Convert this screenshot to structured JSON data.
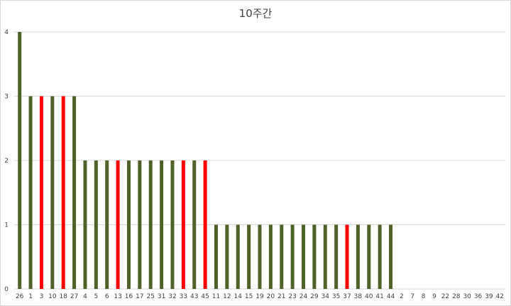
{
  "chart_data": {
    "type": "bar",
    "title": "10주간",
    "xlabel": "",
    "ylabel": "",
    "ylim": [
      0,
      4
    ],
    "yticks": [
      0,
      1,
      2,
      3,
      4
    ],
    "grid": true,
    "legend": "none",
    "categories": [
      "26",
      "1",
      "3",
      "10",
      "18",
      "27",
      "4",
      "5",
      "6",
      "13",
      "16",
      "17",
      "25",
      "31",
      "32",
      "33",
      "43",
      "45",
      "11",
      "12",
      "14",
      "15",
      "19",
      "20",
      "21",
      "23",
      "24",
      "29",
      "34",
      "35",
      "37",
      "38",
      "40",
      "41",
      "44",
      "2",
      "7",
      "8",
      "9",
      "22",
      "28",
      "30",
      "36",
      "39",
      "42"
    ],
    "values": [
      4,
      3,
      3,
      3,
      3,
      3,
      2,
      2,
      2,
      2,
      2,
      2,
      2,
      2,
      2,
      2,
      2,
      2,
      1,
      1,
      1,
      1,
      1,
      1,
      1,
      1,
      1,
      1,
      1,
      1,
      1,
      1,
      1,
      1,
      1,
      0,
      0,
      0,
      0,
      0,
      0,
      0,
      0,
      0,
      0
    ],
    "highlighted": [
      "3",
      "18",
      "13",
      "33",
      "45",
      "37"
    ],
    "colors": {
      "default": "#4f6228",
      "highlight": "#ff0000"
    }
  }
}
